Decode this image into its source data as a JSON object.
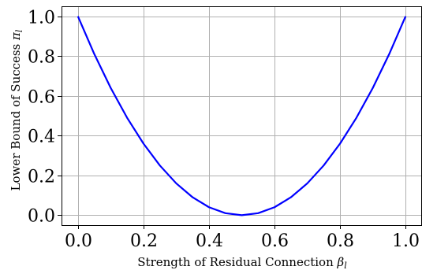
{
  "chart_data": {
    "type": "line",
    "xlabel_text": "Strength of Residual Connection ",
    "xlabel_symbol": "β",
    "xlabel_subscript": "l",
    "ylabel_text": "Lower Bound of Success ",
    "ylabel_symbol": "π",
    "ylabel_subscript": "l",
    "xlim": [
      -0.05,
      1.05
    ],
    "ylim": [
      -0.05,
      1.05
    ],
    "xticks": [
      0.0,
      0.2,
      0.4,
      0.6,
      0.8,
      1.0
    ],
    "yticks": [
      0.0,
      0.2,
      0.4,
      0.6,
      0.8,
      1.0
    ],
    "xtick_labels": [
      "0.0",
      "0.2",
      "0.4",
      "0.6",
      "0.8",
      "1.0"
    ],
    "ytick_labels": [
      "0.0",
      "0.2",
      "0.4",
      "0.6",
      "0.8",
      "1.0"
    ],
    "grid": true,
    "series": [
      {
        "color": "#0000ff",
        "x": [
          0.0,
          0.05,
          0.1,
          0.15,
          0.2,
          0.25,
          0.3,
          0.35,
          0.4,
          0.45,
          0.5,
          0.55,
          0.6,
          0.65,
          0.7,
          0.75,
          0.8,
          0.85,
          0.9,
          0.95,
          1.0
        ],
        "y": [
          1.0,
          0.81,
          0.64,
          0.49,
          0.36,
          0.25,
          0.16,
          0.09,
          0.04,
          0.01,
          0.0,
          0.01,
          0.04,
          0.09,
          0.16,
          0.25,
          0.36,
          0.49,
          0.64,
          0.81,
          1.0
        ]
      }
    ]
  }
}
